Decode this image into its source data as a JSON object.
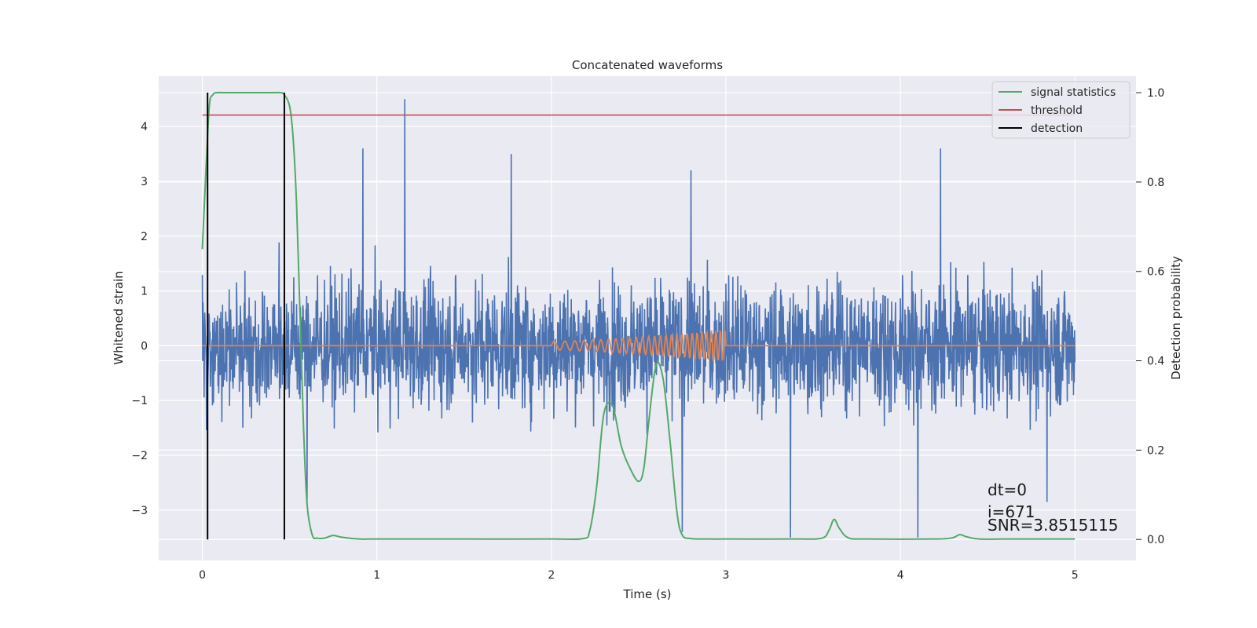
{
  "chart_data": {
    "type": "line",
    "title": "Concatenated waveforms",
    "xlabel": "Time (s)",
    "ylabel": "Whitened strain",
    "y2label": "Detection probability",
    "xlim": [
      -0.25,
      5.35
    ],
    "ylim": [
      -3.92,
      4.92
    ],
    "y2lim": [
      -0.047,
      1.037
    ],
    "xticks": [
      0,
      1,
      2,
      3,
      4,
      5
    ],
    "yticks": [
      -3,
      -2,
      -1,
      0,
      1,
      2,
      3,
      4
    ],
    "y2ticks": [
      0.0,
      0.2,
      0.4,
      0.6,
      0.8,
      1.0
    ],
    "grid": true,
    "legend_position": "top-right",
    "colors": {
      "background": "#eaeaf2",
      "strain": "#4c72b0",
      "injection": "#dd8452",
      "signal_statistics": "#55a868",
      "threshold": "#c44e52",
      "detection": "#000000"
    },
    "legend": [
      {
        "label": "signal statistics",
        "series": "signal_statistics"
      },
      {
        "label": "threshold",
        "series": "threshold"
      },
      {
        "label": "detection",
        "series": "detection"
      }
    ],
    "strain_envelope": {
      "description_x": [
        0.0,
        5.0
      ],
      "typical_amplitude": 1.3,
      "peaks": [
        {
          "x": 1.16,
          "y": 4.5
        },
        {
          "x": 0.92,
          "y": 3.6
        },
        {
          "x": 1.77,
          "y": 3.5
        },
        {
          "x": 2.8,
          "y": 3.2
        },
        {
          "x": 4.23,
          "y": 3.6
        },
        {
          "x": 4.1,
          "y": -3.5
        },
        {
          "x": 3.37,
          "y": -3.5
        },
        {
          "x": 2.75,
          "y": -3.4
        },
        {
          "x": 0.6,
          "y": -2.9
        },
        {
          "x": 4.84,
          "y": -2.85
        }
      ]
    },
    "injection": {
      "start": 2.0,
      "end": 3.0,
      "f_start": 15,
      "f_end": 40,
      "amp_start": 0.08,
      "amp_end": 0.3
    },
    "signal_statistics": {
      "x": [
        0.0,
        0.02,
        0.04,
        0.06,
        0.08,
        0.12,
        0.2,
        0.3,
        0.4,
        0.45,
        0.47,
        0.5,
        0.52,
        0.54,
        0.56,
        0.58,
        0.6,
        0.63,
        0.66,
        0.7,
        0.75,
        0.8,
        0.9,
        1.0,
        1.5,
        2.0,
        2.18,
        2.22,
        2.26,
        2.3,
        2.35,
        2.4,
        2.45,
        2.5,
        2.53,
        2.56,
        2.6,
        2.64,
        2.68,
        2.72,
        2.75,
        2.8,
        2.9,
        3.0,
        3.4,
        3.55,
        3.59,
        3.62,
        3.65,
        3.7,
        3.8,
        4.2,
        4.3,
        4.34,
        4.38,
        4.45,
        4.6,
        5.0
      ],
      "y": [
        0.65,
        0.82,
        0.97,
        0.995,
        1.0,
        1.0,
        1.0,
        1.0,
        1.0,
        1.0,
        0.995,
        0.97,
        0.9,
        0.75,
        0.5,
        0.25,
        0.08,
        0.01,
        0.003,
        0.003,
        0.009,
        0.005,
        0.001,
        0.001,
        0.001,
        0.001,
        0.002,
        0.02,
        0.12,
        0.28,
        0.3,
        0.21,
        0.16,
        0.13,
        0.16,
        0.27,
        0.39,
        0.36,
        0.22,
        0.06,
        0.01,
        0.002,
        0.001,
        0.001,
        0.001,
        0.003,
        0.02,
        0.045,
        0.025,
        0.004,
        0.001,
        0.001,
        0.004,
        0.011,
        0.006,
        0.001,
        0.001,
        0.001
      ]
    },
    "threshold": {
      "y": 0.95,
      "x": [
        0.0,
        5.0
      ]
    },
    "detections": [
      0.03,
      0.47
    ],
    "annotations": [
      "dt=0",
      "i=671",
      "SNR=3.8515115"
    ]
  }
}
